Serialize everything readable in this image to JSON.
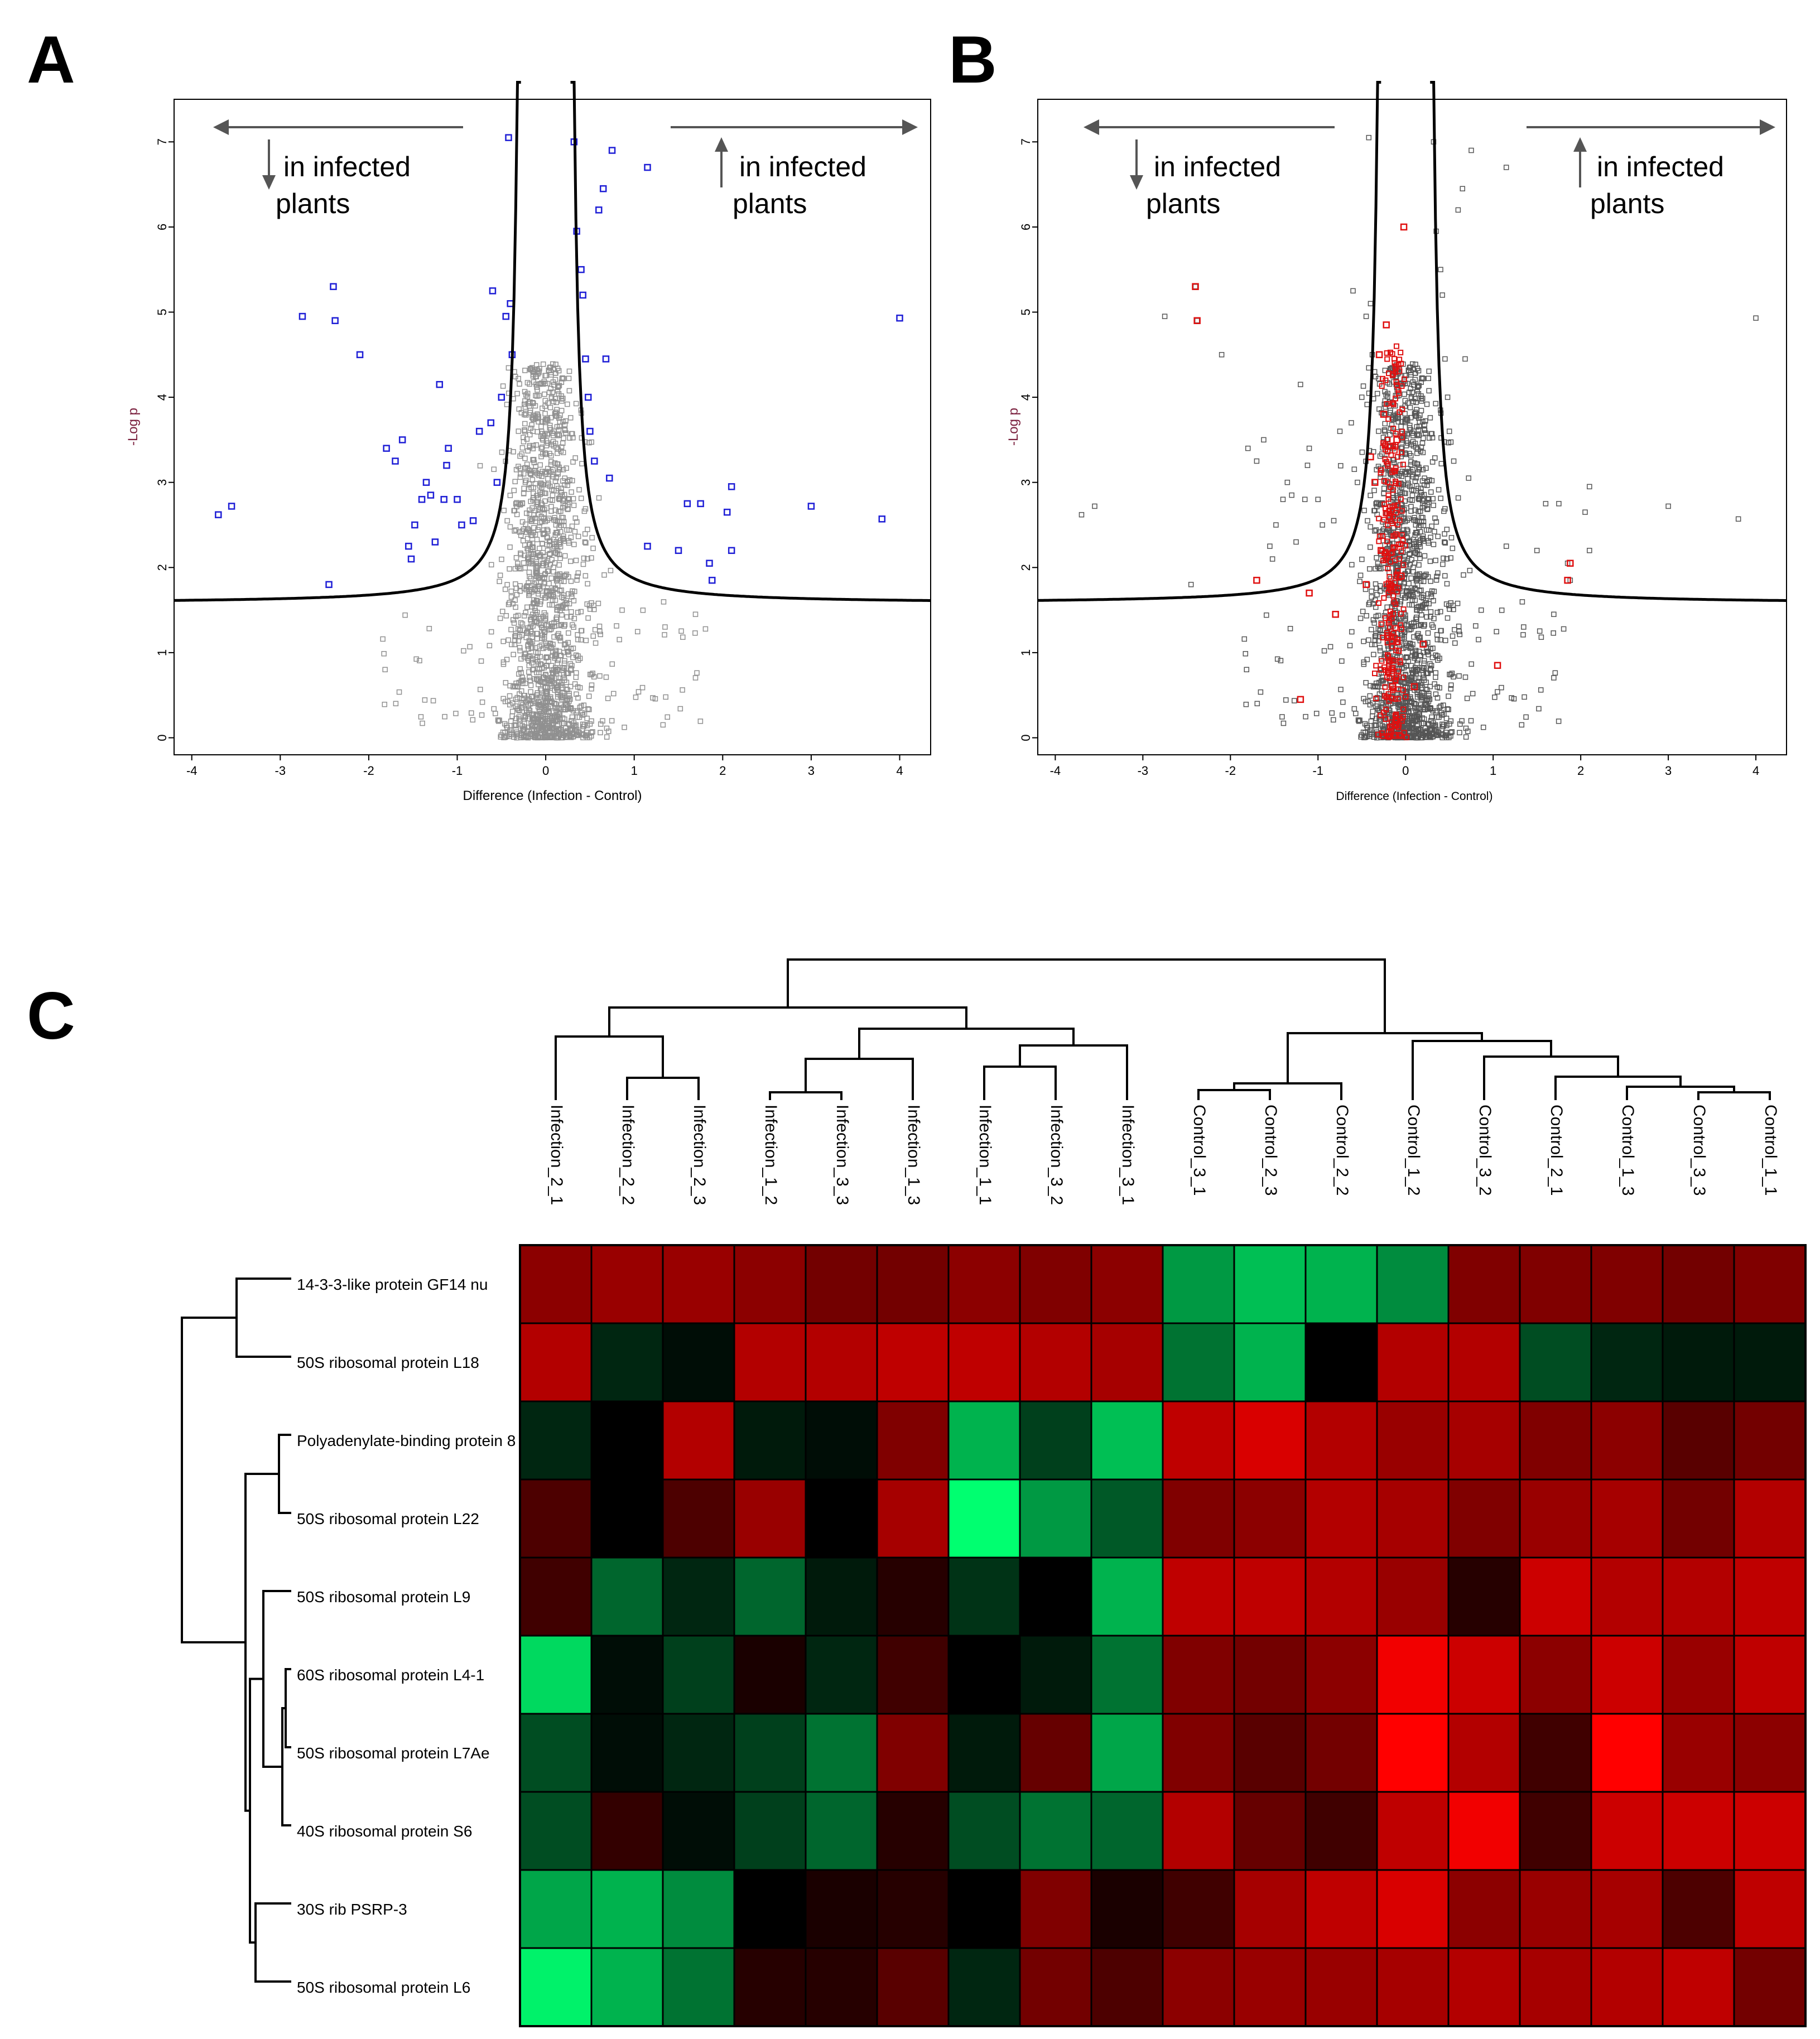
{
  "figure": {
    "panels": {
      "a": {
        "letter": "A"
      },
      "b": {
        "letter": "B"
      },
      "c": {
        "letter": "C"
      }
    },
    "annotation": {
      "left_line1": "in infected",
      "left_line2": "plants",
      "right_line1": "in infected",
      "right_line2": "plants"
    },
    "colors": {
      "significant_a": "#1f1fd6",
      "highlight_b": "#e01010",
      "nonsignificant_a": "#909090",
      "nonsignificant_b": "#555555",
      "heat_low": "#00ff70",
      "heat_mid": "#000000",
      "heat_high": "#ff0000"
    }
  },
  "chart_data": [
    {
      "panel": "A",
      "type": "scatter",
      "title": "",
      "xlabel": "Difference (Infection - Control)",
      "ylabel": "-Log p",
      "xlim": [
        -4.2,
        4.35
      ],
      "ylim": [
        -0.2,
        7.5
      ],
      "xticks": [
        -4,
        -3,
        -2,
        -1,
        0,
        1,
        2,
        3,
        4
      ],
      "yticks": [
        0,
        1,
        2,
        3,
        4,
        5,
        6,
        7
      ],
      "threshold_curve": {
        "s0": 0.2,
        "fdr_asymptote": 1.58,
        "description": "significance cut-off curve"
      },
      "significant_points": [
        {
          "x": -3.7,
          "y": 2.62
        },
        {
          "x": -3.55,
          "y": 2.72
        },
        {
          "x": -2.75,
          "y": 4.95
        },
        {
          "x": -2.4,
          "y": 5.3
        },
        {
          "x": -2.38,
          "y": 4.9
        },
        {
          "x": -2.1,
          "y": 4.5
        },
        {
          "x": -2.45,
          "y": 1.8
        },
        {
          "x": -1.8,
          "y": 3.4
        },
        {
          "x": -1.7,
          "y": 3.25
        },
        {
          "x": -1.62,
          "y": 3.5
        },
        {
          "x": -1.55,
          "y": 2.25
        },
        {
          "x": -1.52,
          "y": 2.1
        },
        {
          "x": -1.48,
          "y": 2.5
        },
        {
          "x": -1.4,
          "y": 2.8
        },
        {
          "x": -1.35,
          "y": 3.0
        },
        {
          "x": -1.3,
          "y": 2.85
        },
        {
          "x": -1.25,
          "y": 2.3
        },
        {
          "x": -1.2,
          "y": 4.15
        },
        {
          "x": -1.15,
          "y": 2.8
        },
        {
          "x": -1.12,
          "y": 3.2
        },
        {
          "x": -1.1,
          "y": 3.4
        },
        {
          "x": -1.0,
          "y": 2.8
        },
        {
          "x": -0.95,
          "y": 2.5
        },
        {
          "x": -0.82,
          "y": 2.55
        },
        {
          "x": -0.75,
          "y": 3.6
        },
        {
          "x": -0.62,
          "y": 3.7
        },
        {
          "x": -0.6,
          "y": 5.25
        },
        {
          "x": -0.55,
          "y": 3.0
        },
        {
          "x": -0.5,
          "y": 4.0
        },
        {
          "x": -0.45,
          "y": 4.95
        },
        {
          "x": -0.42,
          "y": 7.05
        },
        {
          "x": -0.4,
          "y": 5.1
        },
        {
          "x": -0.38,
          "y": 4.5
        },
        {
          "x": 0.32,
          "y": 7.0
        },
        {
          "x": 0.35,
          "y": 5.95
        },
        {
          "x": 0.4,
          "y": 5.5
        },
        {
          "x": 0.42,
          "y": 5.2
        },
        {
          "x": 0.45,
          "y": 4.45
        },
        {
          "x": 0.48,
          "y": 4.0
        },
        {
          "x": 0.5,
          "y": 3.6
        },
        {
          "x": 0.55,
          "y": 3.25
        },
        {
          "x": 0.6,
          "y": 6.2
        },
        {
          "x": 0.65,
          "y": 6.45
        },
        {
          "x": 0.68,
          "y": 4.45
        },
        {
          "x": 0.72,
          "y": 3.05
        },
        {
          "x": 0.75,
          "y": 6.9
        },
        {
          "x": 1.15,
          "y": 6.7
        },
        {
          "x": 1.15,
          "y": 2.25
        },
        {
          "x": 1.5,
          "y": 2.2
        },
        {
          "x": 1.6,
          "y": 2.75
        },
        {
          "x": 1.75,
          "y": 2.75
        },
        {
          "x": 1.85,
          "y": 2.05
        },
        {
          "x": 1.88,
          "y": 1.85
        },
        {
          "x": 2.05,
          "y": 2.65
        },
        {
          "x": 2.1,
          "y": 2.95
        },
        {
          "x": 2.1,
          "y": 2.2
        },
        {
          "x": 3.0,
          "y": 2.72
        },
        {
          "x": 3.8,
          "y": 2.57
        },
        {
          "x": 4.0,
          "y": 4.93
        }
      ]
    },
    {
      "panel": "B",
      "type": "scatter",
      "title": "",
      "xlabel": "Difference (Infection - Control)",
      "ylabel": "-Log p",
      "xlim": [
        -4.2,
        4.35
      ],
      "ylim": [
        -0.2,
        7.5
      ],
      "xticks": [
        -4,
        -3,
        -2,
        -1,
        0,
        1,
        2,
        3,
        4
      ],
      "yticks": [
        0,
        1,
        2,
        3,
        4,
        5,
        6,
        7
      ],
      "threshold_curve": {
        "s0": 0.2,
        "fdr_asymptote": 1.58,
        "description": "significance cut-off curve"
      },
      "highlighted_points": [
        {
          "x": -2.4,
          "y": 5.3
        },
        {
          "x": -2.38,
          "y": 4.9
        },
        {
          "x": -1.7,
          "y": 1.85
        },
        {
          "x": -1.2,
          "y": 0.45
        },
        {
          "x": -1.1,
          "y": 1.7
        },
        {
          "x": -0.8,
          "y": 1.45
        },
        {
          "x": -0.45,
          "y": 1.8
        },
        {
          "x": -0.4,
          "y": 3.3
        },
        {
          "x": -0.35,
          "y": 3.0
        },
        {
          "x": -0.3,
          "y": 4.5
        },
        {
          "x": -0.28,
          "y": 2.2
        },
        {
          "x": -0.25,
          "y": 3.8
        },
        {
          "x": -0.22,
          "y": 4.85
        },
        {
          "x": -0.2,
          "y": 1.2
        },
        {
          "x": -0.18,
          "y": 2.6
        },
        {
          "x": -0.15,
          "y": 0.6
        },
        {
          "x": -0.1,
          "y": 3.5
        },
        {
          "x": -0.05,
          "y": 1.9
        },
        {
          "x": -0.02,
          "y": 6.0
        },
        {
          "x": 0.1,
          "y": 0.6
        },
        {
          "x": 0.2,
          "y": 1.1
        },
        {
          "x": 1.05,
          "y": 0.85
        },
        {
          "x": 1.85,
          "y": 1.85
        },
        {
          "x": 1.88,
          "y": 2.05
        }
      ]
    },
    {
      "panel": "C",
      "type": "heatmap",
      "title": "",
      "columns": [
        "Infection_2_1",
        "Infection_2_2",
        "Infection_2_3",
        "Infection_1_2",
        "Infection_3_3",
        "Infection_1_3",
        "Infection_1_1",
        "Infection_3_2",
        "Infection_3_1",
        "Control_3_1",
        "Control_2_3",
        "Control_2_2",
        "Control_1_2",
        "Control_3_2",
        "Control_2_1",
        "Control_1_3",
        "Control_3_3",
        "Control_1_1"
      ],
      "rows": [
        "14-3-3-like protein GF14 nu",
        "50S ribosomal protein L18",
        "Polyadenylate-binding protein 8",
        "50S ribosomal protein L22",
        "50S ribosomal protein L9",
        "60S ribosomal protein L4-1",
        "50S ribosomal protein L7Ae",
        "40S ribosomal protein S6",
        "30S rib PSRP-3",
        "50S ribosomal protein L6"
      ],
      "values": [
        [
          0.55,
          0.6,
          0.6,
          0.55,
          0.45,
          0.45,
          0.55,
          0.5,
          0.55,
          -0.6,
          -0.75,
          -0.7,
          -0.55,
          0.5,
          0.5,
          0.5,
          0.45,
          0.5
        ],
        [
          0.7,
          -0.15,
          -0.05,
          0.7,
          0.7,
          0.75,
          0.75,
          0.7,
          0.65,
          -0.45,
          -0.7,
          0.0,
          0.7,
          0.7,
          -0.3,
          -0.15,
          -0.1,
          -0.1
        ],
        [
          -0.15,
          0.0,
          0.7,
          -0.1,
          -0.05,
          0.5,
          -0.7,
          -0.25,
          -0.75,
          0.75,
          0.85,
          0.7,
          0.6,
          0.65,
          0.5,
          0.55,
          0.35,
          0.45
        ],
        [
          0.3,
          0.0,
          0.3,
          0.6,
          0.0,
          0.65,
          -1.0,
          -0.6,
          -0.35,
          0.5,
          0.55,
          0.7,
          0.65,
          0.5,
          0.6,
          0.65,
          0.45,
          0.7
        ],
        [
          0.25,
          -0.4,
          -0.15,
          -0.4,
          -0.1,
          0.15,
          -0.2,
          0.0,
          -0.7,
          0.75,
          0.75,
          0.7,
          0.6,
          0.15,
          0.8,
          0.7,
          0.7,
          0.75
        ],
        [
          -0.85,
          -0.05,
          -0.25,
          0.1,
          -0.15,
          0.25,
          0.0,
          -0.1,
          -0.45,
          0.5,
          0.45,
          0.55,
          0.95,
          0.8,
          0.55,
          0.8,
          0.6,
          0.75
        ],
        [
          -0.3,
          -0.05,
          -0.15,
          -0.25,
          -0.45,
          0.5,
          -0.1,
          0.4,
          -0.65,
          0.5,
          0.35,
          0.45,
          1.0,
          0.7,
          0.25,
          1.0,
          0.6,
          0.55
        ],
        [
          -0.3,
          0.2,
          -0.05,
          -0.25,
          -0.4,
          0.15,
          -0.3,
          -0.45,
          -0.4,
          0.7,
          0.4,
          0.25,
          0.75,
          0.95,
          0.25,
          0.8,
          0.8,
          0.8
        ],
        [
          -0.65,
          -0.7,
          -0.55,
          0.0,
          0.1,
          0.15,
          0.0,
          0.5,
          0.1,
          0.25,
          0.65,
          0.75,
          0.85,
          0.55,
          0.6,
          0.65,
          0.3,
          0.75
        ],
        [
          -0.95,
          -0.7,
          -0.45,
          0.15,
          0.15,
          0.35,
          -0.15,
          0.45,
          0.3,
          0.55,
          0.6,
          0.6,
          0.65,
          0.7,
          0.65,
          0.7,
          0.75,
          0.45
        ]
      ],
      "color_scale": {
        "low": "green",
        "mid": "black",
        "high": "red",
        "min": -1,
        "max": 1
      },
      "column_dendrogram": "hierarchical clustering of samples (Infection group vs Control group)",
      "row_dendrogram": "hierarchical clustering of proteins"
    }
  ]
}
